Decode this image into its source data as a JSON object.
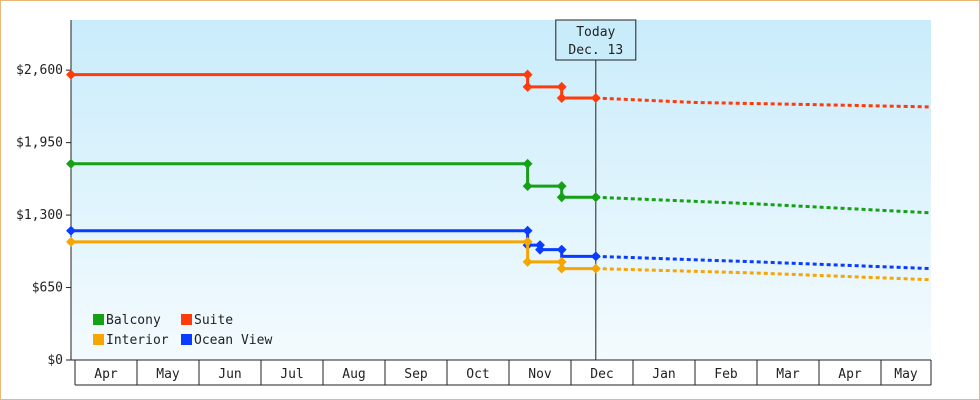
{
  "chart_data": {
    "type": "line",
    "x_labels": [
      "Apr",
      "May",
      "Jun",
      "Jul",
      "Aug",
      "Sep",
      "Oct",
      "Nov",
      "Dec",
      "Jan",
      "Feb",
      "Mar",
      "Apr",
      "May"
    ],
    "y_ticks": [
      "$0",
      "$650",
      "$1,300",
      "$1,950",
      "$2,600"
    ],
    "ylim": [
      0,
      3050
    ],
    "grid": false,
    "legend_position": "bottom-left",
    "today_marker": {
      "line1": "Today",
      "line2": "Dec. 13",
      "month_position": 8.4
    },
    "series": [
      {
        "name": "Suite",
        "color": "#ff3b0a",
        "points": [
          [
            0,
            2560
          ],
          [
            7.3,
            2560
          ],
          [
            7.3,
            2450
          ],
          [
            7.85,
            2450
          ],
          [
            7.85,
            2350
          ],
          [
            8.4,
            2350
          ]
        ],
        "markers": [
          [
            0,
            2560
          ],
          [
            7.3,
            2560
          ],
          [
            7.3,
            2450
          ],
          [
            7.85,
            2450
          ],
          [
            7.85,
            2350
          ],
          [
            8.4,
            2350
          ]
        ],
        "forecast": [
          [
            8.4,
            2350
          ],
          [
            10,
            2310
          ],
          [
            12,
            2290
          ],
          [
            14,
            2270
          ]
        ]
      },
      {
        "name": "Balcony",
        "color": "#16a016",
        "points": [
          [
            0,
            1760
          ],
          [
            7.3,
            1760
          ],
          [
            7.3,
            1560
          ],
          [
            7.85,
            1560
          ],
          [
            7.85,
            1460
          ],
          [
            8.4,
            1460
          ]
        ],
        "markers": [
          [
            0,
            1760
          ],
          [
            7.3,
            1760
          ],
          [
            7.3,
            1560
          ],
          [
            7.85,
            1560
          ],
          [
            7.85,
            1460
          ],
          [
            8.4,
            1460
          ]
        ],
        "forecast": [
          [
            8.4,
            1460
          ],
          [
            11,
            1400
          ],
          [
            14,
            1320
          ]
        ]
      },
      {
        "name": "Ocean View",
        "color": "#0a3cff",
        "points": [
          [
            0,
            1160
          ],
          [
            7.3,
            1160
          ],
          [
            7.3,
            1030
          ],
          [
            7.5,
            1030
          ],
          [
            7.5,
            990
          ],
          [
            7.85,
            990
          ],
          [
            7.85,
            930
          ],
          [
            8.4,
            930
          ]
        ],
        "markers": [
          [
            0,
            1160
          ],
          [
            7.3,
            1160
          ],
          [
            7.3,
            1030
          ],
          [
            7.5,
            1030
          ],
          [
            7.5,
            990
          ],
          [
            7.85,
            990
          ],
          [
            8.4,
            930
          ]
        ],
        "forecast": [
          [
            8.4,
            930
          ],
          [
            11,
            880
          ],
          [
            14,
            820
          ]
        ]
      },
      {
        "name": "Interior",
        "color": "#f7a500",
        "points": [
          [
            0,
            1060
          ],
          [
            7.3,
            1060
          ],
          [
            7.3,
            880
          ],
          [
            7.85,
            880
          ],
          [
            7.85,
            820
          ],
          [
            8.4,
            820
          ]
        ],
        "markers": [
          [
            0,
            1060
          ],
          [
            7.3,
            1060
          ],
          [
            7.3,
            880
          ],
          [
            7.85,
            880
          ],
          [
            7.85,
            820
          ],
          [
            8.4,
            820
          ]
        ],
        "forecast": [
          [
            8.4,
            820
          ],
          [
            11,
            780
          ],
          [
            14,
            720
          ]
        ]
      }
    ],
    "legend": [
      {
        "name": "Balcony",
        "color": "#16a016"
      },
      {
        "name": "Suite",
        "color": "#ff3b0a"
      },
      {
        "name": "Interior",
        "color": "#f7a500"
      },
      {
        "name": "Ocean View",
        "color": "#0a3cff"
      }
    ]
  }
}
